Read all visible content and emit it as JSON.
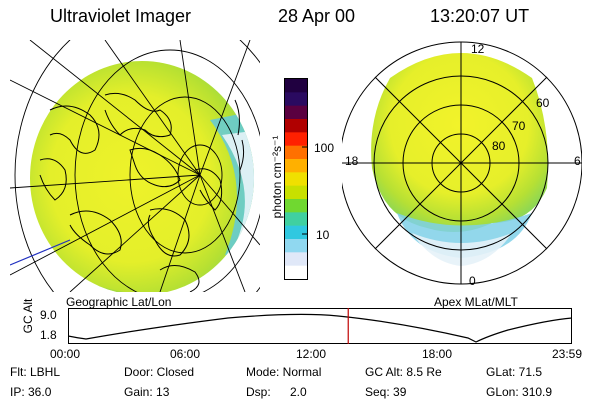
{
  "header": {
    "instrument": "Ultraviolet Imager",
    "date": "28 Apr 00",
    "time": "13:20:07 UT"
  },
  "colorbar": {
    "label": "photon cm⁻²s⁻¹",
    "tick_top": "100",
    "tick_bottom": "10",
    "colors_top_to_bottom": [
      "#200040",
      "#2a0a60",
      "#5a0040",
      "#b00000",
      "#ff2000",
      "#ff7000",
      "#ffb000",
      "#f0e000",
      "#c8e000",
      "#70d830",
      "#40d0a0",
      "#30c8e0",
      "#90d8f0",
      "#e0e8f8",
      "#ffffff"
    ]
  },
  "left_panel": {
    "caption": "Geographic Lat/Lon"
  },
  "right_panel": {
    "caption": "Apex MLat/MLT",
    "mlt_labels": {
      "top": "12",
      "left": "18",
      "right": "6",
      "bottom": "0"
    },
    "lat_labels": [
      "60",
      "70",
      "80"
    ]
  },
  "altitude_plot": {
    "ylabel": "GC Alt",
    "y_ticks": [
      "9.0",
      "1.8"
    ],
    "x_ticks": [
      "00:00",
      "06:00",
      "12:00",
      "18:00",
      "23:59"
    ],
    "current_time_fraction": 0.556
  },
  "status": {
    "row1": {
      "filter": "Flt: LBHL",
      "door": "Door: Closed",
      "mode": "Mode: Normal",
      "gc_alt": "GC Alt: 8.5 Re",
      "glat": "GLat:  71.5"
    },
    "row2": {
      "ip": "IP: 36.0",
      "gain": "Gain: 13",
      "dsp_label": "Dsp:",
      "dsp_value": "2.0",
      "seq": "Seq: 39",
      "glon": "GLon: 310.9"
    }
  },
  "colors": {
    "aurora_yellow": "#e8f028",
    "aurora_green": "#b8e030",
    "edge_cyan": "#40c8e0",
    "time_marker": "#c00000",
    "grid": "#000000"
  }
}
